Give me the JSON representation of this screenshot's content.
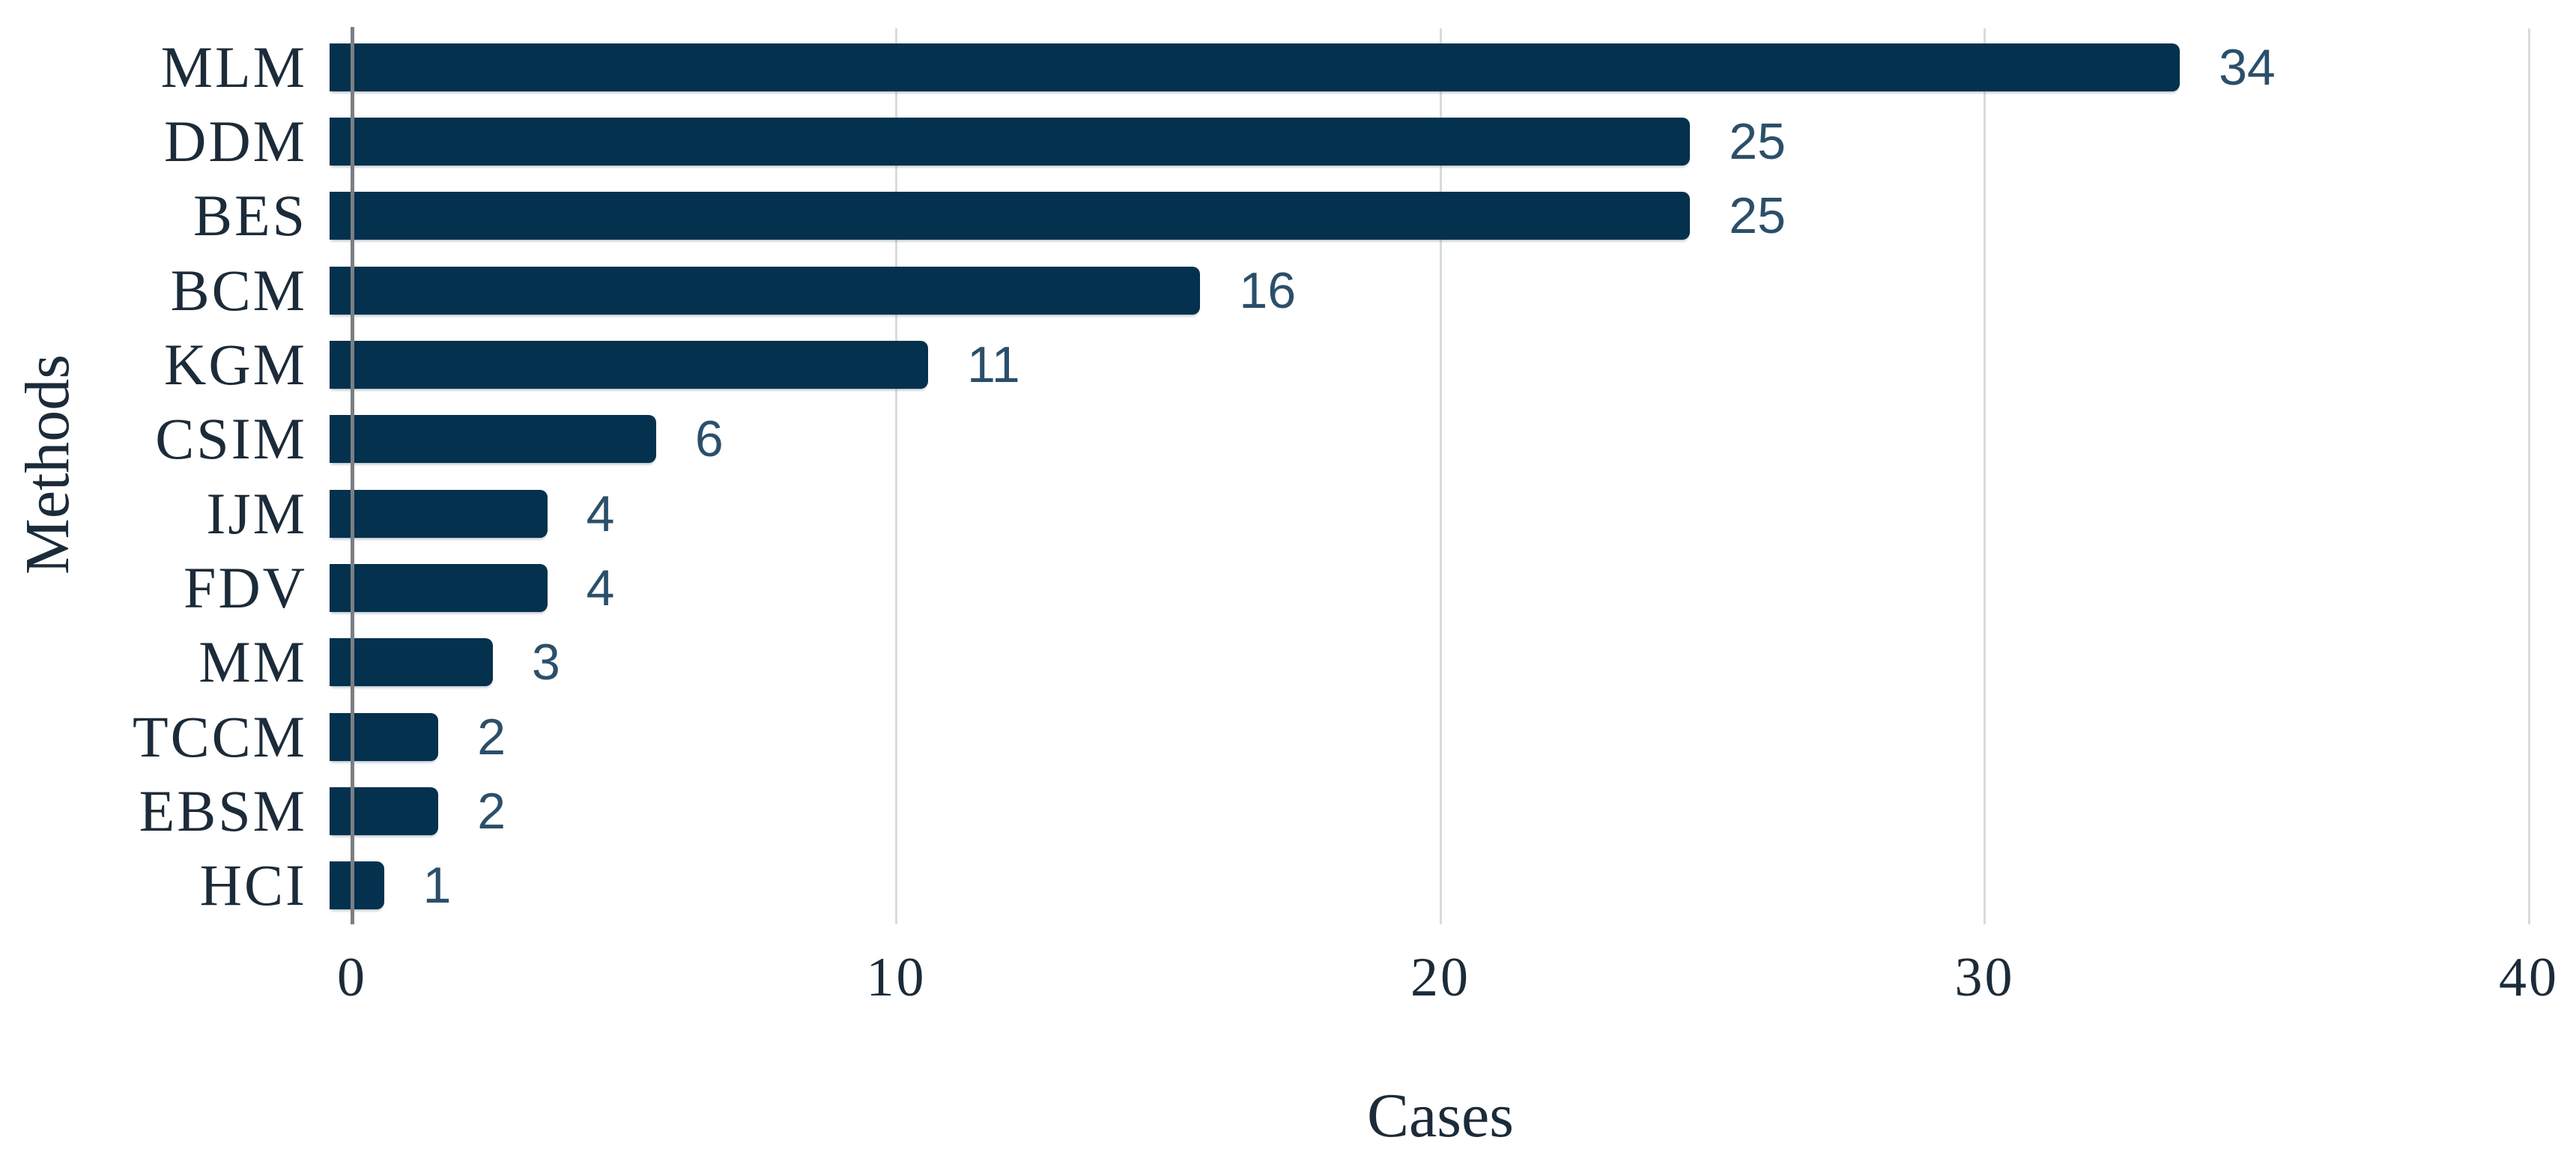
{
  "chart_data": {
    "type": "bar",
    "orientation": "horizontal",
    "title": "",
    "xlabel": "Cases",
    "ylabel": "Methods",
    "categories": [
      "MLM",
      "DDM",
      "BES",
      "BCM",
      "KGM",
      "CSIM",
      "IJM",
      "FDV",
      "MM",
      "TCCM",
      "EBSM",
      "HCI"
    ],
    "values": [
      34,
      25,
      25,
      16,
      11,
      6,
      4,
      4,
      3,
      2,
      2,
      1
    ],
    "xlim": [
      0,
      40
    ],
    "xticks": [
      0,
      10,
      20,
      30,
      40
    ],
    "grid": "vertical gridlines at x ticks",
    "legend_position": "none",
    "bar_value_labels_shown": true
  },
  "colors": {
    "background": "#ffffff",
    "bar_fill": "#04314d",
    "value_label": "#2b4f6a",
    "axis_text": "#1c2b39",
    "axis_line": "#7a7f84",
    "gridline": "#d8dbde"
  }
}
